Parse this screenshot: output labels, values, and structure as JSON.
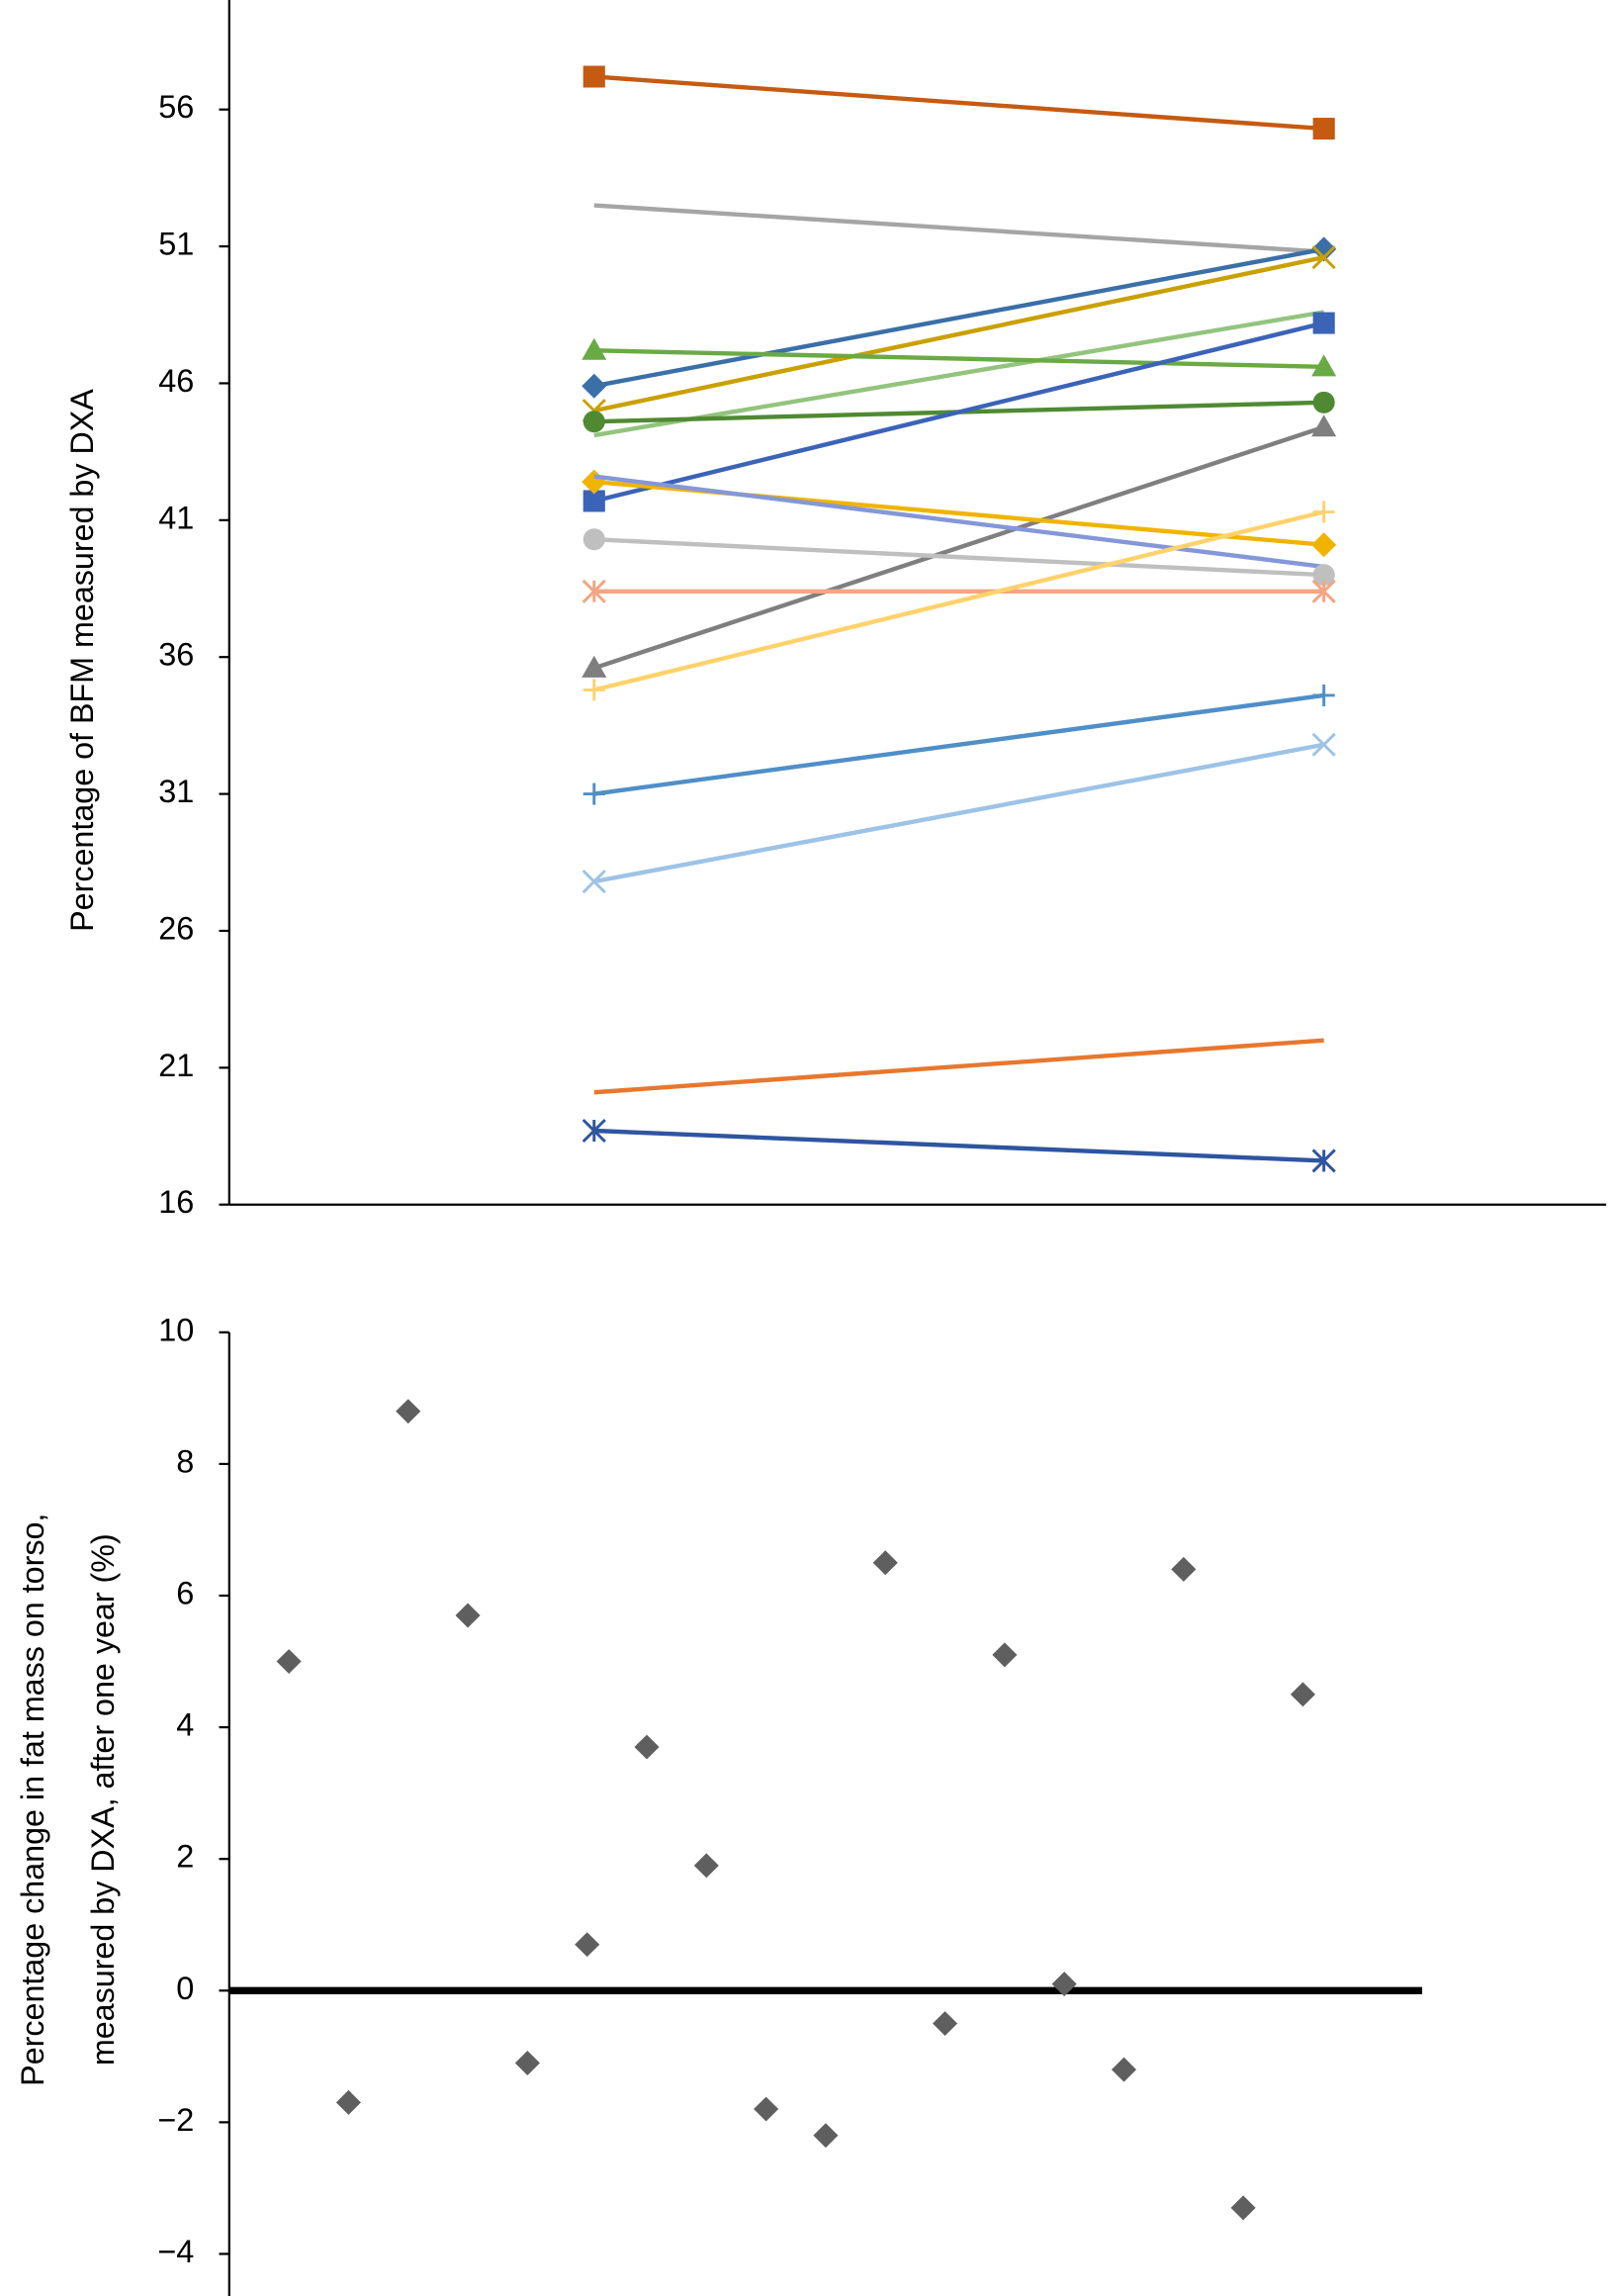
{
  "chart_data": [
    {
      "type": "line",
      "ylabel": "Percentage of BFM measured by DXA",
      "categories": [
        null,
        null
      ],
      "ylim": [
        16,
        60
      ],
      "yticks": [
        16,
        21,
        26,
        31,
        36,
        41,
        46,
        51,
        56
      ],
      "series": [
        {
          "color": "#c55a11",
          "marker": "square",
          "values": [
            57.2,
            55.3
          ]
        },
        {
          "color": "#a5a5a5",
          "values": [
            52.5,
            50.8
          ]
        },
        {
          "color": "#3a6fa8",
          "marker": "diamond",
          "values": [
            45.9,
            50.9
          ]
        },
        {
          "color": "#c9a000",
          "marker": "x",
          "values": [
            45.0,
            50.6
          ]
        },
        {
          "color": "#93c47d",
          "values": [
            44.1,
            48.6
          ]
        },
        {
          "color": "#6aaa45",
          "marker": "triangle",
          "values": [
            47.2,
            46.6
          ]
        },
        {
          "color": "#4f8a33",
          "marker": "circle",
          "values": [
            44.6,
            45.3
          ]
        },
        {
          "color": "#3b63b8",
          "marker": "square",
          "values": [
            41.7,
            48.2
          ]
        },
        {
          "color": "#7f7f7f",
          "marker": "triangle",
          "values": [
            35.6,
            44.4
          ]
        },
        {
          "color": "#f0b400",
          "marker": "diamond",
          "values": [
            42.4,
            40.1
          ]
        },
        {
          "color": "#8497d8",
          "values": [
            42.6,
            39.3
          ]
        },
        {
          "color": "#bfbfbf",
          "marker": "circle",
          "values": [
            40.3,
            39.0
          ]
        },
        {
          "color": "#f4a582",
          "marker": "asterisk",
          "values": [
            38.4,
            38.4
          ]
        },
        {
          "color": "#ffd26b",
          "marker": "plus",
          "values": [
            34.8,
            41.3
          ]
        },
        {
          "color": "#4f8fc8",
          "marker": "plus",
          "values": [
            31.0,
            34.6
          ]
        },
        {
          "color": "#9dc3e6",
          "marker": "x",
          "values": [
            27.8,
            32.8
          ]
        },
        {
          "color": "#e8772e",
          "values": [
            20.1,
            22.0
          ]
        },
        {
          "color": "#2f55a0",
          "marker": "asterisk",
          "values": [
            18.7,
            17.6
          ]
        }
      ]
    },
    {
      "type": "scatter",
      "ylabel": [
        "Percentage change in fat mass on torso,",
        "measured by DXA, after one year (%)"
      ],
      "categories": [
        null,
        null,
        null,
        null,
        null,
        null,
        null,
        null,
        null,
        null,
        null,
        null,
        null,
        null,
        null,
        null,
        null,
        null
      ],
      "values": [
        5.0,
        -1.7,
        8.8,
        5.7,
        -1.1,
        0.7,
        3.7,
        1.9,
        -1.8,
        -2.2,
        6.5,
        -0.5,
        5.1,
        0.1,
        -1.2,
        6.4,
        -3.3,
        4.5
      ],
      "color": "#5f5f5f",
      "marker": "diamond",
      "baseline": 0,
      "ylim": [
        -4,
        10
      ],
      "yticks": [
        {
          "value": -4,
          "label": "−4"
        },
        {
          "value": -2,
          "label": "−2"
        },
        0,
        2,
        4,
        6,
        8,
        10
      ]
    }
  ]
}
